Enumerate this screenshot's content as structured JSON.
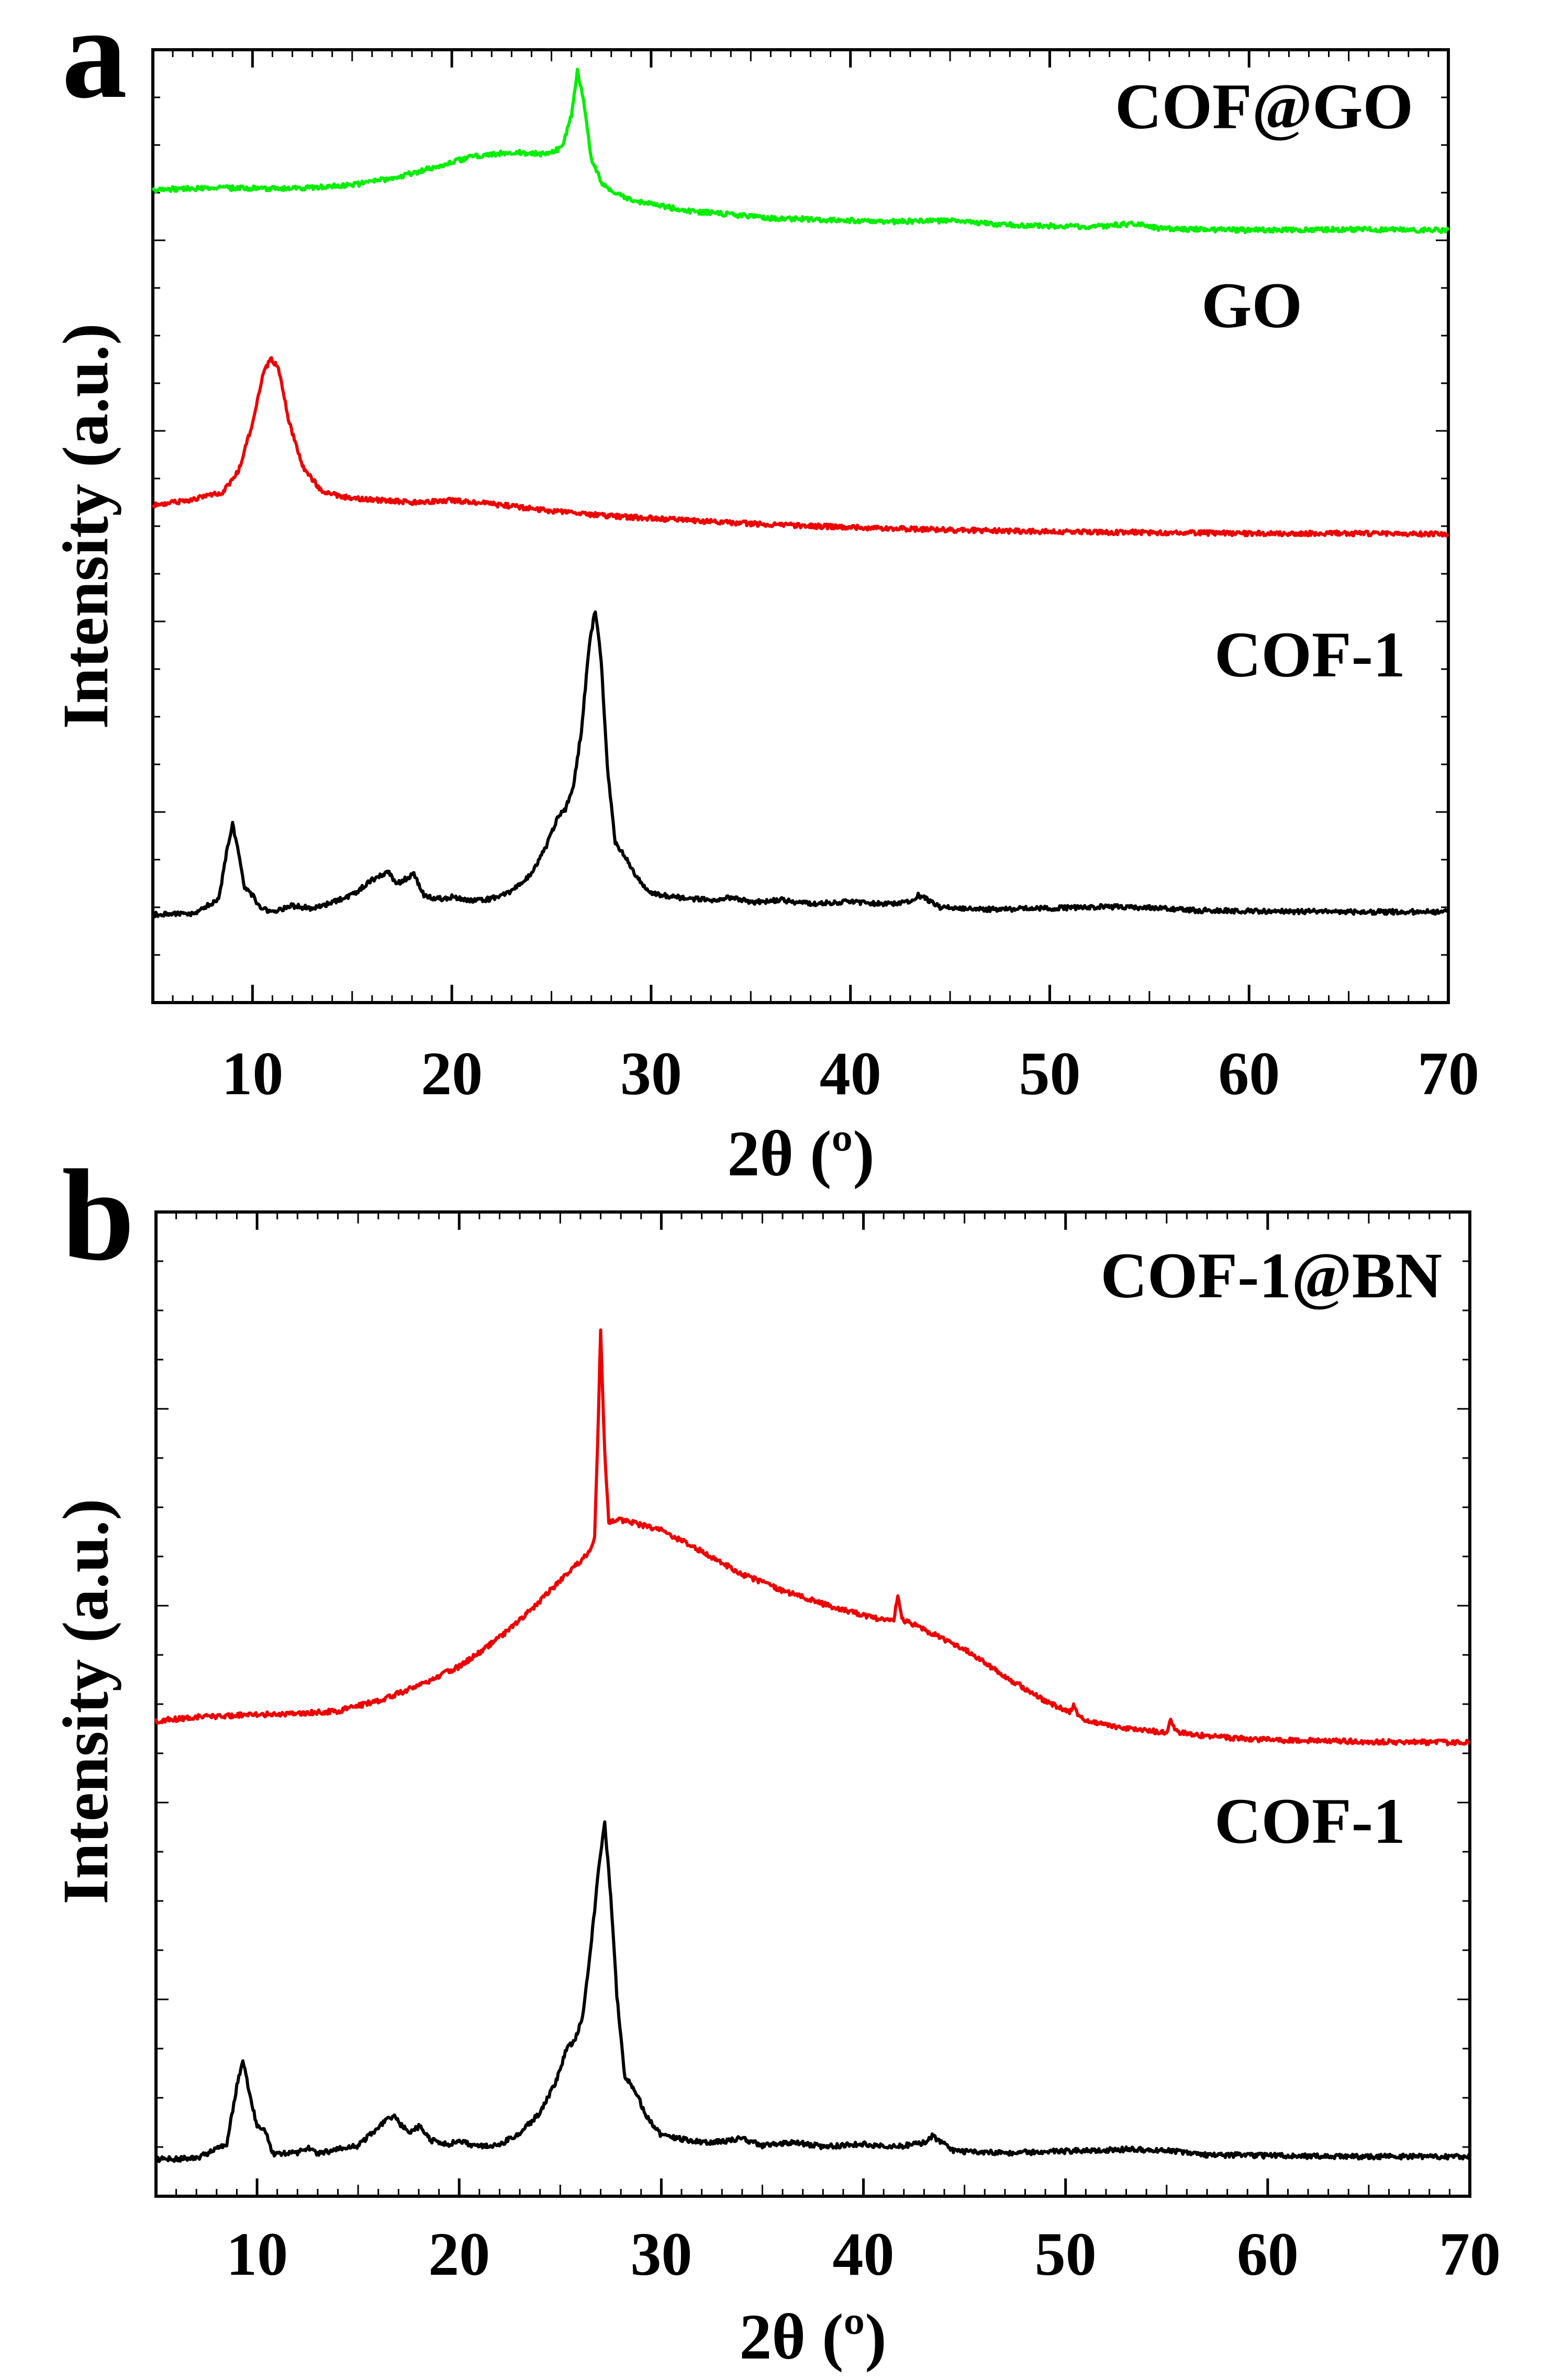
{
  "chart_data": [
    {
      "panel_label": "a",
      "type": "line",
      "xlabel": "2θ (º)",
      "ylabel": "Intensity (a.u.)",
      "xlim": [
        5,
        70
      ],
      "ylim": [
        0,
        100
      ],
      "xticks": [
        10,
        20,
        30,
        40,
        50,
        60,
        70
      ],
      "xtick_labels": [
        "10",
        "20",
        "30",
        "40",
        "50",
        "60",
        "70"
      ],
      "y_tick_labels_shown": false,
      "series": [
        {
          "name": "COF@GO",
          "color": "#00ee00",
          "points": [
            [
              5,
              84.5
            ],
            [
              8,
              84.7
            ],
            [
              12,
              84.6
            ],
            [
              15,
              85
            ],
            [
              17,
              85.8
            ],
            [
              19,
              87
            ],
            [
              21,
              88.3
            ],
            [
              23,
              88.8
            ],
            [
              24.5,
              88.6
            ],
            [
              25.5,
              89.2
            ],
            [
              26.0,
              93
            ],
            [
              26.3,
              98.2
            ],
            [
              26.6,
              95
            ],
            [
              27.0,
              88
            ],
            [
              27.6,
              85
            ],
            [
              29,
              83.2
            ],
            [
              32,
              82
            ],
            [
              36,
              81.2
            ],
            [
              42,
              80.8
            ],
            [
              45,
              80.9
            ],
            [
              48,
              80.4
            ],
            [
              52,
              80.2
            ],
            [
              54.5,
              80.6
            ],
            [
              55.5,
              80
            ],
            [
              60,
              79.8
            ],
            [
              65,
              79.9
            ],
            [
              70,
              79.8
            ]
          ]
        },
        {
          "name": "GO",
          "color": "#ee0000",
          "points": [
            [
              5,
              48
            ],
            [
              7,
              48.7
            ],
            [
              8.5,
              49.5
            ],
            [
              9.3,
              52
            ],
            [
              10,
              57.5
            ],
            [
              10.5,
              63
            ],
            [
              10.9,
              65
            ],
            [
              11.3,
              64
            ],
            [
              11.8,
              58
            ],
            [
              12.5,
              52.5
            ],
            [
              13.5,
              49.6
            ],
            [
              15,
              48.8
            ],
            [
              18,
              48.4
            ],
            [
              20,
              48.6
            ],
            [
              22,
              48.2
            ],
            [
              25,
              47.4
            ],
            [
              28,
              46.8
            ],
            [
              32,
              46.3
            ],
            [
              36,
              45.8
            ],
            [
              40,
              45.5
            ],
            [
              45,
              45.2
            ],
            [
              50,
              45
            ],
            [
              55,
              44.9
            ],
            [
              60,
              44.8
            ],
            [
              65,
              44.8
            ],
            [
              70,
              44.7
            ]
          ]
        },
        {
          "name": "COF-1",
          "color": "#000000",
          "points": [
            [
              5,
              0.8
            ],
            [
              7,
              0.9
            ],
            [
              8.3,
              2.5
            ],
            [
              8.7,
              8
            ],
            [
              9.0,
              11.2
            ],
            [
              9.3,
              8
            ],
            [
              9.6,
              4
            ],
            [
              10,
              3
            ],
            [
              10.4,
              1.5
            ],
            [
              11,
              1.2
            ],
            [
              12,
              1.8
            ],
            [
              13,
              1.5
            ],
            [
              14,
              2.2
            ],
            [
              15,
              3
            ],
            [
              15.8,
              4.5
            ],
            [
              16.3,
              5.2
            ],
            [
              16.8,
              5.8
            ],
            [
              17.2,
              4.3
            ],
            [
              17.6,
              4.8
            ],
            [
              18.1,
              5.5
            ],
            [
              18.6,
              3
            ],
            [
              19.3,
              2.6
            ],
            [
              20,
              2.8
            ],
            [
              21,
              2.4
            ],
            [
              22,
              2.6
            ],
            [
              23,
              3.5
            ],
            [
              24,
              5.5
            ],
            [
              24.8,
              9
            ],
            [
              25.3,
              12
            ],
            [
              25.7,
              13
            ],
            [
              26.1,
              15.5
            ],
            [
              26.5,
              22
            ],
            [
              26.9,
              32
            ],
            [
              27.2,
              36
            ],
            [
              27.5,
              30
            ],
            [
              27.8,
              18
            ],
            [
              28.2,
              9
            ],
            [
              28.7,
              7.5
            ],
            [
              29.3,
              5
            ],
            [
              30,
              3.2
            ],
            [
              32,
              2.6
            ],
            [
              33,
              2.5
            ],
            [
              34,
              2.8
            ],
            [
              35,
              2.2
            ],
            [
              36.5,
              2.5
            ],
            [
              38,
              2
            ],
            [
              40,
              2.3
            ],
            [
              41,
              2.1
            ],
            [
              42,
              2
            ],
            [
              43,
              2.3
            ],
            [
              43.4,
              3
            ],
            [
              43.8,
              2.6
            ],
            [
              44.5,
              1.6
            ],
            [
              47,
              1.4
            ],
            [
              50,
              1.5
            ],
            [
              53,
              1.7
            ],
            [
              55,
              1.6
            ],
            [
              57,
              1.3
            ],
            [
              60,
              1.2
            ],
            [
              65,
              1.1
            ],
            [
              70,
              1.1
            ]
          ]
        }
      ],
      "annotations": [
        "COF@GO",
        "GO",
        "COF-1"
      ]
    },
    {
      "panel_label": "b",
      "type": "line",
      "xlabel": "2θ (º)",
      "ylabel": "Intensity (a.u.)",
      "xlim": [
        5,
        70
      ],
      "ylim": [
        0,
        100
      ],
      "xticks": [
        10,
        20,
        30,
        40,
        50,
        60,
        70
      ],
      "xtick_labels": [
        "10",
        "20",
        "30",
        "40",
        "50",
        "60",
        "70"
      ],
      "y_tick_labels_shown": false,
      "series": [
        {
          "name": "COF-1@BN",
          "color": "#ee0000",
          "points": [
            [
              5,
              49.3
            ],
            [
              7,
              49.7
            ],
            [
              10,
              50
            ],
            [
              12,
              50.1
            ],
            [
              14,
              50.4
            ],
            [
              16,
              51.5
            ],
            [
              18,
              53.2
            ],
            [
              20,
              55.3
            ],
            [
              22,
              58.5
            ],
            [
              24,
              62.5
            ],
            [
              25.5,
              66
            ],
            [
              26.5,
              68
            ],
            [
              26.7,
              69.5
            ],
            [
              26.85,
              80
            ],
            [
              27.0,
              92.5
            ],
            [
              27.2,
              79
            ],
            [
              27.4,
              71.2
            ],
            [
              28,
              71.5
            ],
            [
              30,
              70.4
            ],
            [
              32,
              68
            ],
            [
              34,
              65.5
            ],
            [
              36,
              63.7
            ],
            [
              38,
              62.2
            ],
            [
              40,
              61
            ],
            [
              41.5,
              60.2
            ],
            [
              41.7,
              63.3
            ],
            [
              41.9,
              60.5
            ],
            [
              43,
              59.4
            ],
            [
              45,
              57.2
            ],
            [
              47,
              54.2
            ],
            [
              49,
              51.5
            ],
            [
              50.2,
              50.2
            ],
            [
              50.4,
              51
            ],
            [
              50.7,
              49.6
            ],
            [
              52,
              48.8
            ],
            [
              54,
              48.2
            ],
            [
              55,
              48.1
            ],
            [
              55.2,
              49.3
            ],
            [
              55.5,
              48.1
            ],
            [
              57,
              47.6
            ],
            [
              60,
              47.2
            ],
            [
              65,
              47
            ],
            [
              70,
              46.9
            ]
          ]
        },
        {
          "name": "COF-1",
          "color": "#000000",
          "points": [
            [
              5,
              0.9
            ],
            [
              7,
              1
            ],
            [
              8.5,
              2.5
            ],
            [
              9.0,
              9
            ],
            [
              9.3,
              11.8
            ],
            [
              9.6,
              8.5
            ],
            [
              10.0,
              4.5
            ],
            [
              10.4,
              4
            ],
            [
              10.8,
              1.5
            ],
            [
              12,
              1.6
            ],
            [
              12.5,
              2.2
            ],
            [
              13,
              1.5
            ],
            [
              14,
              2
            ],
            [
              15,
              2.4
            ],
            [
              15.8,
              4
            ],
            [
              16.3,
              5
            ],
            [
              16.8,
              5.8
            ],
            [
              17.2,
              4.4
            ],
            [
              17.6,
              4
            ],
            [
              18.1,
              4.6
            ],
            [
              18.6,
              3
            ],
            [
              19.5,
              2.6
            ],
            [
              20,
              2.9
            ],
            [
              21,
              2.3
            ],
            [
              22,
              2.5
            ],
            [
              23,
              3.8
            ],
            [
              24,
              6
            ],
            [
              24.8,
              9.5
            ],
            [
              25.3,
              13
            ],
            [
              25.7,
              14
            ],
            [
              26.1,
              16.5
            ],
            [
              26.5,
              24
            ],
            [
              26.9,
              33
            ],
            [
              27.2,
              38
            ],
            [
              27.5,
              30
            ],
            [
              27.8,
              19
            ],
            [
              28.2,
              10
            ],
            [
              28.7,
              8.5
            ],
            [
              29.3,
              5.5
            ],
            [
              30,
              3.5
            ],
            [
              32,
              2.8
            ],
            [
              33,
              2.8
            ],
            [
              34,
              3.2
            ],
            [
              35,
              2.4
            ],
            [
              36.5,
              2.8
            ],
            [
              38,
              2.3
            ],
            [
              40,
              2.6
            ],
            [
              41,
              2.3
            ],
            [
              42,
              2.4
            ],
            [
              43,
              2.7
            ],
            [
              43.4,
              3.5
            ],
            [
              43.8,
              2.9
            ],
            [
              44.5,
              1.8
            ],
            [
              47,
              1.6
            ],
            [
              50,
              1.8
            ],
            [
              53,
              2
            ],
            [
              55,
              1.9
            ],
            [
              57,
              1.4
            ],
            [
              60,
              1.3
            ],
            [
              65,
              1.2
            ],
            [
              70,
              1.2
            ]
          ]
        }
      ],
      "annotations": [
        "COF-1@BN",
        "COF-1"
      ]
    }
  ]
}
